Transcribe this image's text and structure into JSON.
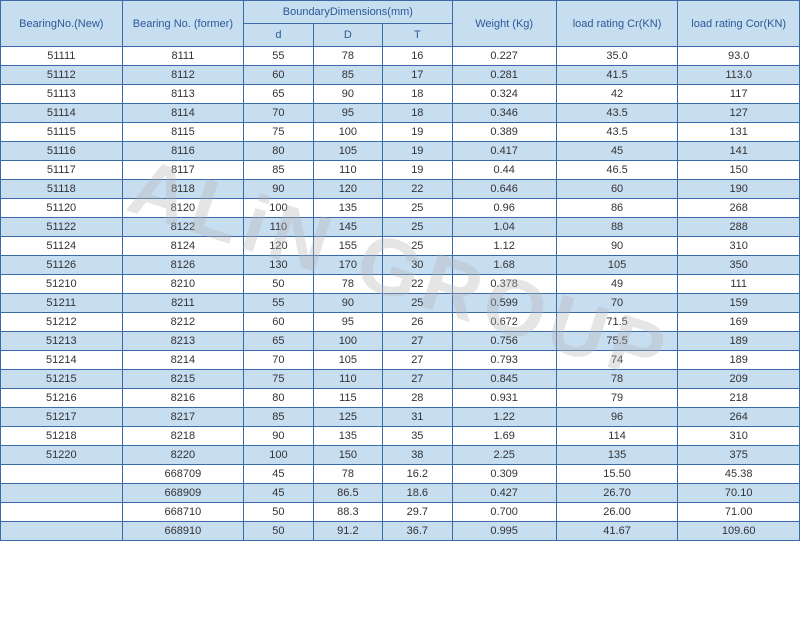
{
  "watermark": "ALiN GROUP",
  "columns": {
    "bearing_new": "BearingNo.(New)",
    "bearing_former": "Bearing No.\n(former)",
    "boundary": "BoundaryDimensions(mm)",
    "weight": "Weight\n(Kg)",
    "cr": "load rating\nCr(KN)",
    "cor": "load rating\nCor(KN)",
    "d": "d",
    "D": "D",
    "T": "T"
  },
  "styling": {
    "border_color": "#3a6aa8",
    "header_bg": "#c7ddf0",
    "header_text_color": "#2a5a98",
    "alt_row_bg": "#c7ddf0",
    "plain_row_bg": "#ffffff",
    "body_text_color": "#333333",
    "font_size_body": 11,
    "font_size_header": 11,
    "watermark_color": "rgba(180,180,180,0.35)",
    "watermark_fontsize": 80,
    "watermark_rotation_deg": 18
  },
  "rows": [
    {
      "new": "51111",
      "former": "8111",
      "d": "55",
      "D": "78",
      "T": "16",
      "weight": "0.227",
      "cr": "35.0",
      "cor": "93.0",
      "alt": false
    },
    {
      "new": "51112",
      "former": "8112",
      "d": "60",
      "D": "85",
      "T": "17",
      "weight": "0.281",
      "cr": "41.5",
      "cor": "113.0",
      "alt": true
    },
    {
      "new": "51113",
      "former": "8113",
      "d": "65",
      "D": "90",
      "T": "18",
      "weight": "0.324",
      "cr": "42",
      "cor": "117",
      "alt": false
    },
    {
      "new": "51114",
      "former": "8114",
      "d": "70",
      "D": "95",
      "T": "18",
      "weight": "0.346",
      "cr": "43.5",
      "cor": "127",
      "alt": true
    },
    {
      "new": "51115",
      "former": "8115",
      "d": "75",
      "D": "100",
      "T": "19",
      "weight": "0.389",
      "cr": "43.5",
      "cor": "131",
      "alt": false
    },
    {
      "new": "51116",
      "former": "8116",
      "d": "80",
      "D": "105",
      "T": "19",
      "weight": "0.417",
      "cr": "45",
      "cor": "141",
      "alt": true
    },
    {
      "new": "51117",
      "former": "8117",
      "d": "85",
      "D": "110",
      "T": "19",
      "weight": "0.44",
      "cr": "46.5",
      "cor": "150",
      "alt": false
    },
    {
      "new": "51118",
      "former": "8118",
      "d": "90",
      "D": "120",
      "T": "22",
      "weight": "0.646",
      "cr": "60",
      "cor": "190",
      "alt": true
    },
    {
      "new": "51120",
      "former": "8120",
      "d": "100",
      "D": "135",
      "T": "25",
      "weight": "0.96",
      "cr": "86",
      "cor": "268",
      "alt": false
    },
    {
      "new": "51122",
      "former": "8122",
      "d": "110",
      "D": "145",
      "T": "25",
      "weight": "1.04",
      "cr": "88",
      "cor": "288",
      "alt": true
    },
    {
      "new": "51124",
      "former": "8124",
      "d": "120",
      "D": "155",
      "T": "25",
      "weight": "1.12",
      "cr": "90",
      "cor": "310",
      "alt": false
    },
    {
      "new": "51126",
      "former": "8126",
      "d": "130",
      "D": "170",
      "T": "30",
      "weight": "1.68",
      "cr": "105",
      "cor": "350",
      "alt": true
    },
    {
      "new": "51210",
      "former": "8210",
      "d": "50",
      "D": "78",
      "T": "22",
      "weight": "0.378",
      "cr": "49",
      "cor": "111",
      "alt": false
    },
    {
      "new": "51211",
      "former": "8211",
      "d": "55",
      "D": "90",
      "T": "25",
      "weight": "0.599",
      "cr": "70",
      "cor": "159",
      "alt": true
    },
    {
      "new": "51212",
      "former": "8212",
      "d": "60",
      "D": "95",
      "T": "26",
      "weight": "0.672",
      "cr": "71.5",
      "cor": "169",
      "alt": false
    },
    {
      "new": "51213",
      "former": "8213",
      "d": "65",
      "D": "100",
      "T": "27",
      "weight": "0.756",
      "cr": "75.5",
      "cor": "189",
      "alt": true
    },
    {
      "new": "51214",
      "former": "8214",
      "d": "70",
      "D": "105",
      "T": "27",
      "weight": "0.793",
      "cr": "74",
      "cor": "189",
      "alt": false
    },
    {
      "new": "51215",
      "former": "8215",
      "d": "75",
      "D": "110",
      "T": "27",
      "weight": "0.845",
      "cr": "78",
      "cor": "209",
      "alt": true
    },
    {
      "new": "51216",
      "former": "8216",
      "d": "80",
      "D": "115",
      "T": "28",
      "weight": "0.931",
      "cr": "79",
      "cor": "218",
      "alt": false
    },
    {
      "new": "51217",
      "former": "8217",
      "d": "85",
      "D": "125",
      "T": "31",
      "weight": "1.22",
      "cr": "96",
      "cor": "264",
      "alt": true
    },
    {
      "new": "51218",
      "former": "8218",
      "d": "90",
      "D": "135",
      "T": "35",
      "weight": "1.69",
      "cr": "114",
      "cor": "310",
      "alt": false
    },
    {
      "new": "51220",
      "former": "8220",
      "d": "100",
      "D": "150",
      "T": "38",
      "weight": "2.25",
      "cr": "135",
      "cor": "375",
      "alt": true
    },
    {
      "new": "",
      "former": "668709",
      "d": "45",
      "D": "78",
      "T": "16.2",
      "weight": "0.309",
      "cr": "15.50",
      "cor": "45.38",
      "alt": false
    },
    {
      "new": "",
      "former": "668909",
      "d": "45",
      "D": "86.5",
      "T": "18.6",
      "weight": "0.427",
      "cr": "26.70",
      "cor": "70.10",
      "alt": true
    },
    {
      "new": "",
      "former": "668710",
      "d": "50",
      "D": "88.3",
      "T": "29.7",
      "weight": "0.700",
      "cr": "26.00",
      "cor": "71.00",
      "alt": false
    },
    {
      "new": "",
      "former": "668910",
      "d": "50",
      "D": "91.2",
      "T": "36.7",
      "weight": "0.995",
      "cr": "41.67",
      "cor": "109.60",
      "alt": true
    }
  ]
}
